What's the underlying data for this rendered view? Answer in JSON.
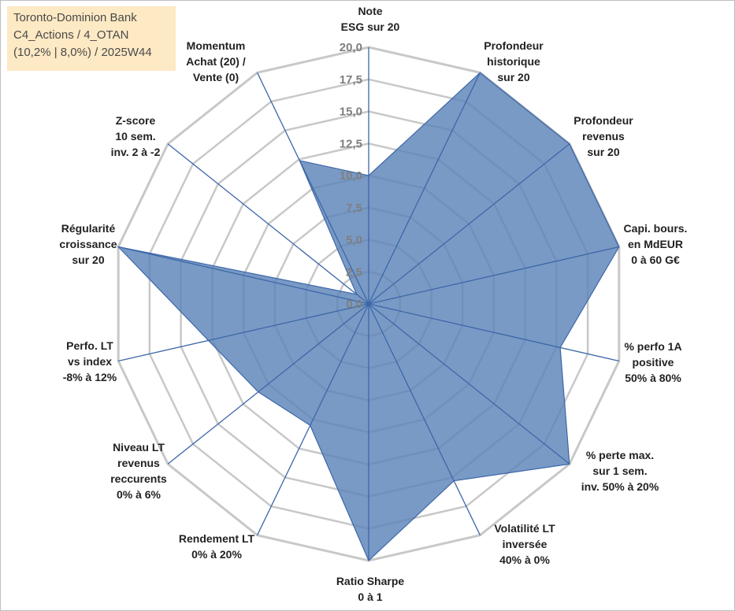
{
  "title_lines": [
    "Toronto-Dominion Bank",
    "C4_Actions / 4_OTAN",
    "(10,2% | 8,0%) / 2025W44"
  ],
  "chart_data": {
    "type": "radar",
    "rmin": 0,
    "rmax": 20,
    "ticks": [
      "0,0",
      "2,5",
      "5,0",
      "7,5",
      "10,0",
      "12,5",
      "15,0",
      "17,5",
      "20,0"
    ],
    "tick_values": [
      0,
      2.5,
      5,
      7.5,
      10,
      12.5,
      15,
      17.5,
      20
    ],
    "axes": [
      {
        "label_lines": [
          "Note",
          "ESG sur 20"
        ],
        "value": 10
      },
      {
        "label_lines": [
          "Profondeur",
          "historique",
          "sur 20"
        ],
        "value": 20
      },
      {
        "label_lines": [
          "Profondeur",
          "revenus",
          "sur 20"
        ],
        "value": 20
      },
      {
        "label_lines": [
          "Capi. bours.",
          "en MdEUR",
          "0 à 60 G€"
        ],
        "value": 20
      },
      {
        "label_lines": [
          "% perfo 1A",
          "positive",
          "50% à 80%"
        ],
        "value": 15.3
      },
      {
        "label_lines": [
          "% perte max.",
          "sur 1 sem.",
          "inv. 50% à 20%"
        ],
        "value": 20
      },
      {
        "label_lines": [
          "Volatilité LT",
          "inversée",
          "40% à 0%"
        ],
        "value": 15.3
      },
      {
        "label_lines": [
          "Ratio Sharpe",
          "0 à 1"
        ],
        "value": 20
      },
      {
        "label_lines": [
          "Rendement LT",
          "0% à 20%"
        ],
        "value": 10.5
      },
      {
        "label_lines": [
          "Niveau LT",
          "revenus",
          "reccurents"
        ],
        "extra_line": "0% à 6%",
        "value": 11
      },
      {
        "label_lines": [
          "Perfo. LT",
          "vs index",
          "-8% à 12%"
        ],
        "value": 12.8
      },
      {
        "label_lines": [
          "Régularité",
          "croissance",
          "sur 20"
        ],
        "value": 20
      },
      {
        "label_lines": [
          "Z-score",
          "10 sem.",
          "inv. 2 à -2"
        ],
        "value": 1.2
      },
      {
        "label_lines": [
          "Momentum",
          "Achat (20) /",
          "Vente (0)"
        ],
        "value": 12.4
      }
    ],
    "colors": {
      "fill": "#5b84b8",
      "line": "#3d67a8",
      "grid": "#c8c8c8",
      "spoke": "#3d67a8"
    }
  }
}
